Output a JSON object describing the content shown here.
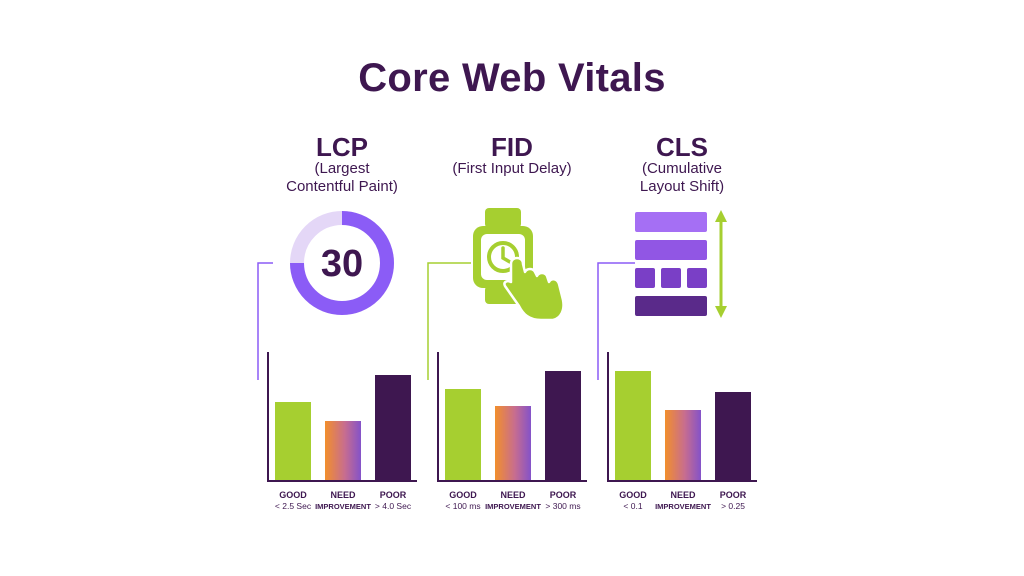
{
  "title": "Core Web Vitals",
  "colors": {
    "dark": "#3e1750",
    "green": "#a6cf30",
    "purple": "#8b5cf6",
    "lightPurple": "#e4d7f7"
  },
  "metrics": [
    {
      "key": "lcp",
      "name": "LCP",
      "subtitle": "(Largest\nContentful Paint)",
      "icon": "gauge-icon",
      "gauge_value": "30",
      "labels": {
        "good": "GOOD",
        "good_sub": "< 2.5 Sec",
        "need": "NEED",
        "need_sub": "IMPROVEMENT",
        "poor": "POOR",
        "poor_sub": "> 4.0 Sec"
      }
    },
    {
      "key": "fid",
      "name": "FID",
      "subtitle": "(First Input Delay)",
      "icon": "smartwatch-tap-icon",
      "labels": {
        "good": "GOOD",
        "good_sub": "< 100 ms",
        "need": "NEED",
        "need_sub": "IMPROVEMENT",
        "poor": "POOR",
        "poor_sub": "> 300 ms"
      }
    },
    {
      "key": "cls",
      "name": "CLS",
      "subtitle": "(Cumulative\nLayout Shift)",
      "icon": "layout-shift-icon",
      "labels": {
        "good": "GOOD",
        "good_sub": "< 0.1",
        "need": "NEED",
        "need_sub": "IMPROVEMENT",
        "poor": "POOR",
        "poor_sub": "> 0.25"
      }
    }
  ]
}
